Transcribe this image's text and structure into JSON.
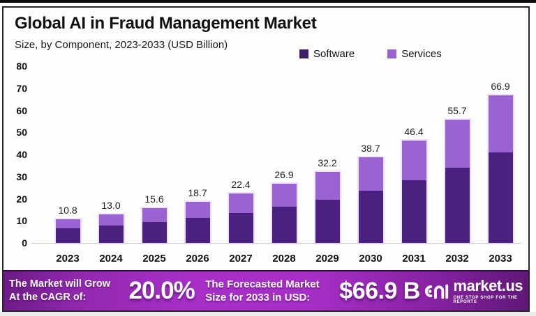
{
  "header": {
    "title": "Global AI in Fraud Management Market",
    "subtitle": "Size, by Component, 2023-2033 (USD Billion)"
  },
  "legend": [
    {
      "label": "Software",
      "color": "#3e1d6d"
    },
    {
      "label": "Services",
      "color": "#9b62d1"
    }
  ],
  "chart_data": {
    "type": "bar",
    "stacked": true,
    "title": "Global AI in Fraud Management Market",
    "subtitle": "Size, by Component, 2023-2033 (USD Billion)",
    "xlabel": "",
    "ylabel": "",
    "ylim": [
      0,
      80
    ],
    "yticks": [
      0,
      10,
      20,
      30,
      40,
      50,
      60,
      70,
      80
    ],
    "grid": false,
    "legend_position": "top-right",
    "categories": [
      "2023",
      "2024",
      "2025",
      "2026",
      "2027",
      "2028",
      "2029",
      "2030",
      "2031",
      "2032",
      "2033"
    ],
    "series": [
      {
        "name": "Software",
        "color": "#4a2080",
        "values": [
          6.5,
          8.0,
          9.6,
          11.4,
          13.7,
          16.3,
          19.6,
          23.6,
          28.3,
          34.0,
          40.9
        ]
      },
      {
        "name": "Services",
        "color": "#9b62d1",
        "values": [
          4.3,
          5.0,
          6.0,
          7.3,
          8.7,
          10.6,
          12.6,
          15.1,
          18.1,
          21.7,
          26.0
        ]
      }
    ],
    "totals": [
      "10.8",
      "13.0",
      "15.6",
      "18.7",
      "22.4",
      "26.9",
      "32.2",
      "38.7",
      "46.4",
      "55.7",
      "66.9"
    ]
  },
  "banner": {
    "cagr_label_line1": "The Market will Grow",
    "cagr_label_line2": "At the CAGR of:",
    "cagr_value": "20.0%",
    "forecast_label_line1": "The Forecasted Market",
    "forecast_label_line2": "Size for 2033 in USD:",
    "forecast_value": "$66.9 B",
    "logo_text": "market.us",
    "logo_tagline": "ONE STOP SHOP FOR THE REPORTS"
  },
  "colors": {
    "software": "#4a2080",
    "services": "#9b62d1",
    "banner_center": "#a72fc7",
    "banner_edge": "#6d1b87",
    "card_border": "#262626"
  }
}
